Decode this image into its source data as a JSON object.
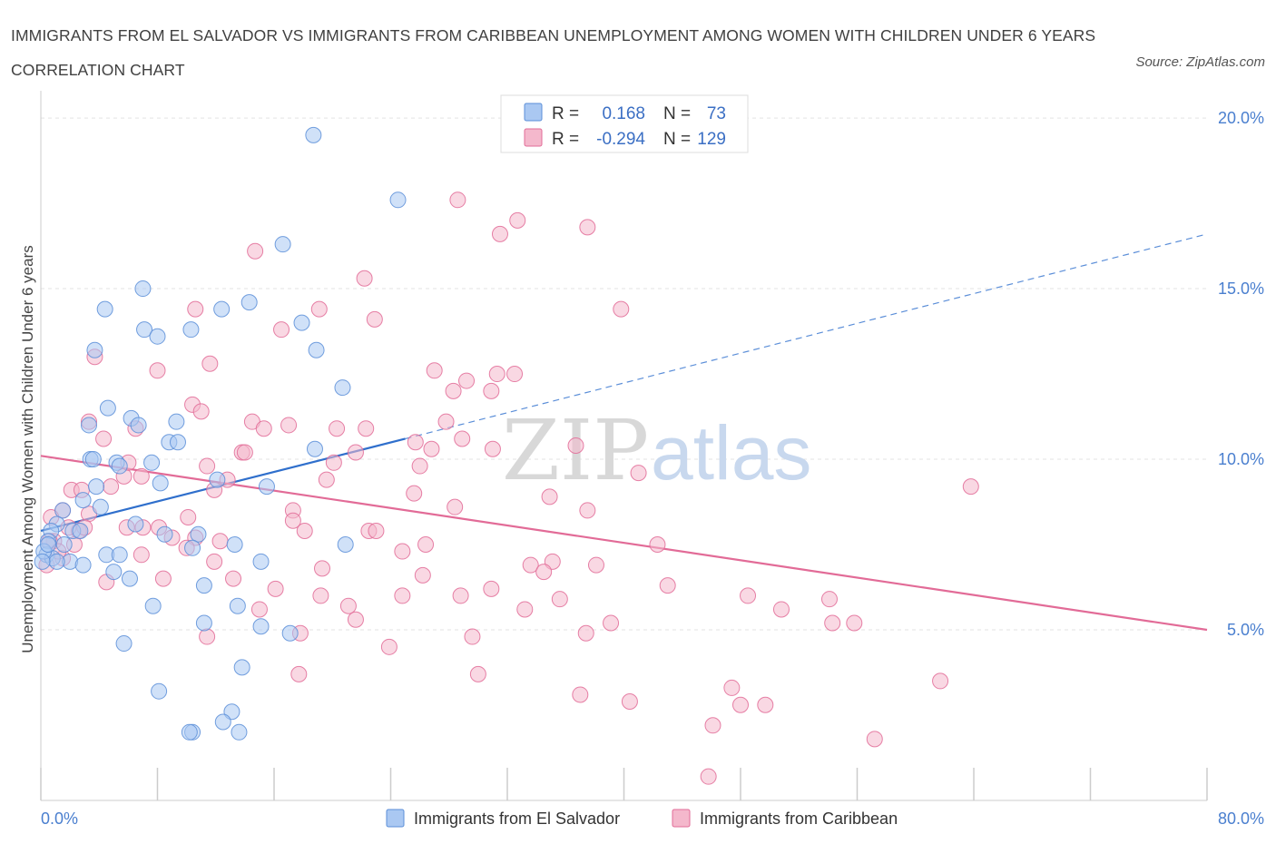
{
  "title": "IMMIGRANTS FROM EL SALVADOR VS IMMIGRANTS FROM CARIBBEAN UNEMPLOYMENT AMONG WOMEN WITH CHILDREN UNDER 6 YEARS CORRELATION CHART",
  "source": "Source: ZipAtlas.com",
  "watermark": {
    "zip": "ZIP",
    "atlas": "atlas"
  },
  "colors": {
    "blue": "#5b8ed8",
    "blue_fill": "#aac8f2",
    "pink": "#e26b97",
    "pink_fill": "#f4b8cc",
    "grid": "#e3e3e3",
    "axis_text": "#4a7fcf"
  },
  "legend": {
    "rows": [
      {
        "r_label": "R =",
        "r_value": "0.168",
        "n_label": "N =",
        "n_value": "73"
      },
      {
        "r_label": "R =",
        "r_value": "-0.294",
        "n_label": "N =",
        "n_value": "129"
      }
    ]
  },
  "chart_data": {
    "type": "scatter",
    "title": "IMMIGRANTS FROM EL SALVADOR VS IMMIGRANTS FROM CARIBBEAN UNEMPLOYMENT AMONG WOMEN WITH CHILDREN UNDER 6 YEARS CORRELATION CHART",
    "xlabel": "",
    "ylabel": "Unemployment Among Women with Children Under 6 years",
    "xlim": [
      0,
      80
    ],
    "ylim": [
      0,
      20.8
    ],
    "x_tick_labels": [
      "0.0%",
      "80.0%"
    ],
    "y_ticks": [
      5,
      10,
      15,
      20
    ],
    "y_tick_labels": [
      "5.0%",
      "10.0%",
      "15.0%",
      "20.0%"
    ],
    "grid": true,
    "legend_position": "top-center",
    "series": [
      {
        "name": "Immigrants from El Salvador",
        "R": 0.168,
        "N": 73,
        "trend": {
          "x0": 0,
          "y0": 7.9,
          "x1": 25,
          "y1": 10.6,
          "dashed_to_x": 80,
          "dashed_to_y": 16.6
        },
        "points": [
          [
            18.7,
            19.5
          ],
          [
            24.5,
            17.6
          ],
          [
            16.6,
            16.3
          ],
          [
            7.0,
            15.0
          ],
          [
            4.4,
            14.4
          ],
          [
            12.4,
            14.4
          ],
          [
            14.3,
            14.6
          ],
          [
            7.1,
            13.8
          ],
          [
            8.0,
            13.6
          ],
          [
            10.3,
            13.8
          ],
          [
            17.9,
            14.0
          ],
          [
            3.7,
            13.2
          ],
          [
            18.9,
            13.2
          ],
          [
            20.7,
            12.1
          ],
          [
            4.6,
            11.5
          ],
          [
            6.2,
            11.2
          ],
          [
            3.3,
            11.0
          ],
          [
            6.7,
            11.0
          ],
          [
            9.3,
            11.1
          ],
          [
            8.8,
            10.5
          ],
          [
            9.4,
            10.5
          ],
          [
            3.4,
            10.0
          ],
          [
            3.6,
            10.0
          ],
          [
            5.2,
            9.9
          ],
          [
            5.4,
            9.8
          ],
          [
            7.6,
            9.9
          ],
          [
            12.1,
            9.4
          ],
          [
            8.2,
            9.3
          ],
          [
            3.8,
            9.2
          ],
          [
            15.5,
            9.2
          ],
          [
            2.9,
            8.8
          ],
          [
            4.1,
            8.6
          ],
          [
            1.5,
            8.5
          ],
          [
            6.5,
            8.1
          ],
          [
            1.1,
            8.1
          ],
          [
            0.7,
            7.9
          ],
          [
            2.2,
            7.9
          ],
          [
            2.7,
            7.9
          ],
          [
            8.5,
            7.8
          ],
          [
            10.8,
            7.8
          ],
          [
            0.5,
            7.6
          ],
          [
            1.6,
            7.5
          ],
          [
            0.4,
            7.2
          ],
          [
            0.8,
            7.1
          ],
          [
            2.0,
            7.0
          ],
          [
            4.5,
            7.2
          ],
          [
            5.4,
            7.2
          ],
          [
            10.4,
            7.4
          ],
          [
            13.3,
            7.5
          ],
          [
            15.1,
            7.0
          ],
          [
            1.1,
            7.0
          ],
          [
            2.9,
            6.9
          ],
          [
            5.0,
            6.7
          ],
          [
            6.1,
            6.5
          ],
          [
            11.2,
            6.3
          ],
          [
            7.7,
            5.7
          ],
          [
            13.5,
            5.7
          ],
          [
            11.2,
            5.2
          ],
          [
            15.1,
            5.1
          ],
          [
            17.1,
            4.9
          ],
          [
            5.7,
            4.6
          ],
          [
            8.1,
            3.2
          ],
          [
            13.8,
            3.9
          ],
          [
            13.1,
            2.6
          ],
          [
            12.5,
            2.3
          ],
          [
            13.6,
            2.0
          ],
          [
            10.4,
            2.0
          ],
          [
            10.2,
            2.0
          ],
          [
            20.9,
            7.5
          ],
          [
            18.8,
            10.3
          ],
          [
            0.2,
            7.3
          ],
          [
            0.1,
            7.0
          ],
          [
            0.5,
            7.5
          ]
        ]
      },
      {
        "name": "Immigrants from Caribbean",
        "R": -0.294,
        "N": 129,
        "trend": {
          "x0": 0,
          "y0": 10.1,
          "x1": 80,
          "y1": 5.0
        },
        "points": [
          [
            28.6,
            17.6
          ],
          [
            32.7,
            17.0
          ],
          [
            31.5,
            16.6
          ],
          [
            37.5,
            16.8
          ],
          [
            14.7,
            16.1
          ],
          [
            22.2,
            15.3
          ],
          [
            39.8,
            14.4
          ],
          [
            10.6,
            14.4
          ],
          [
            19.1,
            14.4
          ],
          [
            22.9,
            14.1
          ],
          [
            16.5,
            13.8
          ],
          [
            3.7,
            13.0
          ],
          [
            11.6,
            12.8
          ],
          [
            8.0,
            12.6
          ],
          [
            27.0,
            12.6
          ],
          [
            29.2,
            12.3
          ],
          [
            31.3,
            12.5
          ],
          [
            32.5,
            12.5
          ],
          [
            28.3,
            12.0
          ],
          [
            30.9,
            12.0
          ],
          [
            10.4,
            11.6
          ],
          [
            11.0,
            11.4
          ],
          [
            3.3,
            11.1
          ],
          [
            14.5,
            11.1
          ],
          [
            17.0,
            11.0
          ],
          [
            27.8,
            11.1
          ],
          [
            6.5,
            10.9
          ],
          [
            15.3,
            10.9
          ],
          [
            20.3,
            10.9
          ],
          [
            22.3,
            10.9
          ],
          [
            4.3,
            10.6
          ],
          [
            25.7,
            10.5
          ],
          [
            26.8,
            10.3
          ],
          [
            28.9,
            10.6
          ],
          [
            36.7,
            10.4
          ],
          [
            13.8,
            10.2
          ],
          [
            14.0,
            10.2
          ],
          [
            21.6,
            10.2
          ],
          [
            11.4,
            9.8
          ],
          [
            41.0,
            9.6
          ],
          [
            5.7,
            9.5
          ],
          [
            6.9,
            9.5
          ],
          [
            12.8,
            9.4
          ],
          [
            19.6,
            9.4
          ],
          [
            63.8,
            9.2
          ],
          [
            2.1,
            9.1
          ],
          [
            11.9,
            9.1
          ],
          [
            25.6,
            9.0
          ],
          [
            34.9,
            8.9
          ],
          [
            28.4,
            8.6
          ],
          [
            17.3,
            8.5
          ],
          [
            37.5,
            8.5
          ],
          [
            1.5,
            8.5
          ],
          [
            3.3,
            8.4
          ],
          [
            10.1,
            8.3
          ],
          [
            17.3,
            8.2
          ],
          [
            5.9,
            8.0
          ],
          [
            8.1,
            8.0
          ],
          [
            2.6,
            7.9
          ],
          [
            18.1,
            7.9
          ],
          [
            22.5,
            7.9
          ],
          [
            23.0,
            7.9
          ],
          [
            9.0,
            7.7
          ],
          [
            12.3,
            7.6
          ],
          [
            10.6,
            7.7
          ],
          [
            0.9,
            7.6
          ],
          [
            2.3,
            7.5
          ],
          [
            10.0,
            7.4
          ],
          [
            26.4,
            7.5
          ],
          [
            42.3,
            7.5
          ],
          [
            24.8,
            7.3
          ],
          [
            6.9,
            7.2
          ],
          [
            1.5,
            7.1
          ],
          [
            11.9,
            7.0
          ],
          [
            33.6,
            6.9
          ],
          [
            35.1,
            7.0
          ],
          [
            38.1,
            6.9
          ],
          [
            0.4,
            6.9
          ],
          [
            19.3,
            6.8
          ],
          [
            34.5,
            6.7
          ],
          [
            8.4,
            6.5
          ],
          [
            26.2,
            6.6
          ],
          [
            13.2,
            6.5
          ],
          [
            4.5,
            6.4
          ],
          [
            43.0,
            6.3
          ],
          [
            16.1,
            6.2
          ],
          [
            28.8,
            6.0
          ],
          [
            30.9,
            6.2
          ],
          [
            19.2,
            6.0
          ],
          [
            24.8,
            6.0
          ],
          [
            35.6,
            5.9
          ],
          [
            48.5,
            6.0
          ],
          [
            54.1,
            5.9
          ],
          [
            21.1,
            5.7
          ],
          [
            33.2,
            5.6
          ],
          [
            50.8,
            5.6
          ],
          [
            21.6,
            5.3
          ],
          [
            39.1,
            5.2
          ],
          [
            54.3,
            5.2
          ],
          [
            55.8,
            5.2
          ],
          [
            11.4,
            4.8
          ],
          [
            17.8,
            4.9
          ],
          [
            29.6,
            4.8
          ],
          [
            37.4,
            4.9
          ],
          [
            23.9,
            4.5
          ],
          [
            30.0,
            3.7
          ],
          [
            17.7,
            3.7
          ],
          [
            61.7,
            3.5
          ],
          [
            47.4,
            3.3
          ],
          [
            37.0,
            3.1
          ],
          [
            40.4,
            2.9
          ],
          [
            48.0,
            2.8
          ],
          [
            49.7,
            2.8
          ],
          [
            46.1,
            2.2
          ],
          [
            57.2,
            1.8
          ],
          [
            45.8,
            0.7
          ],
          [
            2.8,
            9.1
          ],
          [
            4.8,
            9.2
          ],
          [
            3.0,
            8.0
          ],
          [
            1.9,
            8.0
          ],
          [
            0.6,
            7.6
          ],
          [
            1.2,
            7.3
          ],
          [
            0.7,
            8.3
          ],
          [
            6.0,
            9.9
          ],
          [
            7.0,
            8.0
          ],
          [
            15.0,
            5.6
          ],
          [
            26.0,
            9.8
          ],
          [
            20.1,
            9.9
          ],
          [
            31.0,
            10.3
          ]
        ]
      }
    ]
  },
  "bottom_legend": [
    "Immigrants from El Salvador",
    "Immigrants from Caribbean"
  ]
}
